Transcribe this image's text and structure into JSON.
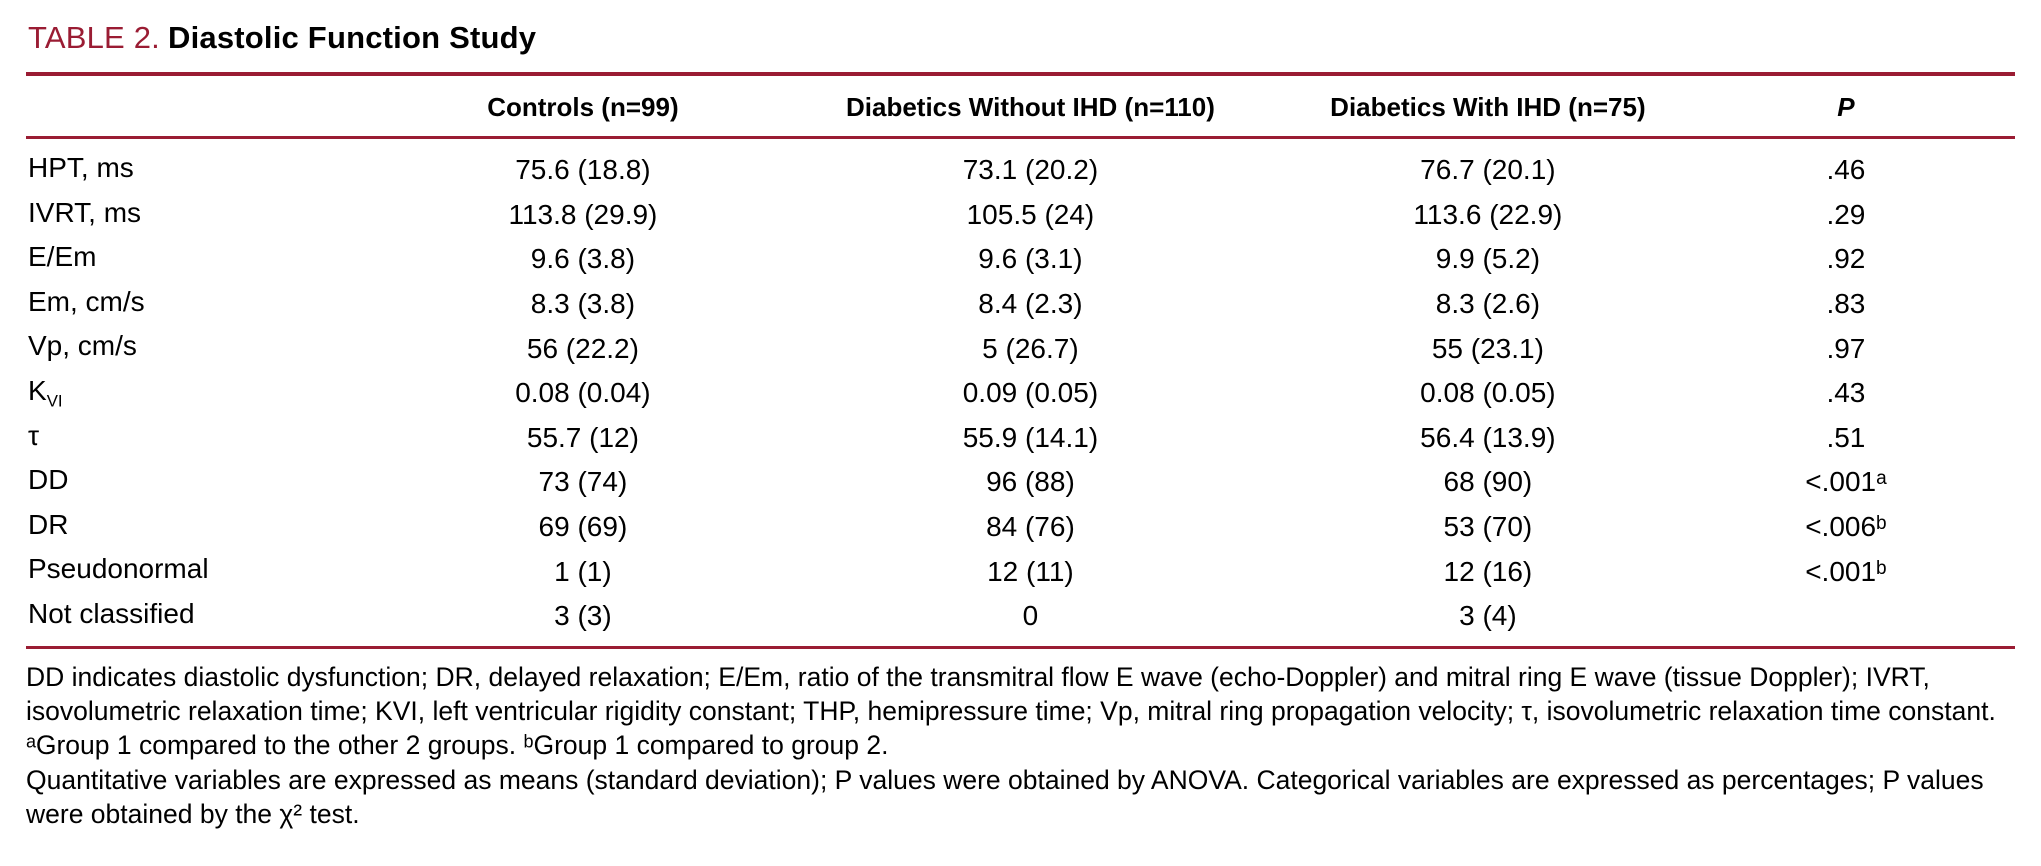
{
  "accent_color": "#9a1c33",
  "title": {
    "label": "TABLE 2.",
    "text": "Diastolic Function Study"
  },
  "table": {
    "columns": [
      "",
      "Controls (n=99)",
      "Diabetics Without IHD (n=110)",
      "Diabetics With IHD (n=75)",
      "P"
    ],
    "rows": [
      {
        "label": "HPT, ms",
        "sub": "",
        "controls": "75.6 (18.8)",
        "without_ihd": "73.1 (20.2)",
        "with_ihd": "76.7 (20.1)",
        "p": ".46"
      },
      {
        "label": "IVRT, ms",
        "sub": "",
        "controls": "113.8 (29.9)",
        "without_ihd": "105.5 (24)",
        "with_ihd": "113.6 (22.9)",
        "p": ".29"
      },
      {
        "label": "E/Em",
        "sub": "",
        "controls": "9.6 (3.8)",
        "without_ihd": "9.6 (3.1)",
        "with_ihd": "9.9 (5.2)",
        "p": ".92"
      },
      {
        "label": "Em, cm/s",
        "sub": "",
        "controls": "8.3 (3.8)",
        "without_ihd": "8.4 (2.3)",
        "with_ihd": "8.3 (2.6)",
        "p": ".83"
      },
      {
        "label": "Vp, cm/s",
        "sub": "",
        "controls": "56 (22.2)",
        "without_ihd": "5 (26.7)",
        "with_ihd": "55 (23.1)",
        "p": ".97"
      },
      {
        "label": "K",
        "sub": "VI",
        "controls": "0.08 (0.04)",
        "without_ihd": "0.09 (0.05)",
        "with_ihd": "0.08 (0.05)",
        "p": ".43"
      },
      {
        "label": "τ",
        "sub": "",
        "controls": "55.7 (12)",
        "without_ihd": "55.9 (14.1)",
        "with_ihd": "56.4 (13.9)",
        "p": ".51"
      },
      {
        "label": "DD",
        "sub": "",
        "controls": "73 (74)",
        "without_ihd": "96 (88)",
        "with_ihd": "68 (90)",
        "p": "<.001ᵃ"
      },
      {
        "label": "DR",
        "sub": "",
        "controls": "69 (69)",
        "without_ihd": "84 (76)",
        "with_ihd": "53 (70)",
        "p": "<.006ᵇ"
      },
      {
        "label": "Pseudonormal",
        "sub": "",
        "controls": "1 (1)",
        "without_ihd": "12 (11)",
        "with_ihd": "12 (16)",
        "p": "<.001ᵇ"
      },
      {
        "label": "Not classified",
        "sub": "",
        "controls": "3 (3)",
        "without_ihd": "0",
        "with_ihd": "3 (4)",
        "p": ""
      }
    ]
  },
  "footnotes": [
    "DD indicates diastolic dysfunction; DR, delayed relaxation; E/Em, ratio of the transmitral flow E wave (echo-Doppler) and mitral ring E wave (tissue Doppler); IVRT, isovolumetric relaxation time; KVI, left ventricular rigidity constant; THP, hemipressure time; Vp, mitral ring propagation velocity; τ, isovolumetric relaxation time constant.",
    "ᵃGroup 1 compared to the other 2 groups. ᵇGroup 1 compared to group 2.",
    "Quantitative variables are expressed as means (standard deviation); P values were obtained by ANOVA. Categorical variables are expressed as percentages; P values were obtained by the χ² test."
  ]
}
